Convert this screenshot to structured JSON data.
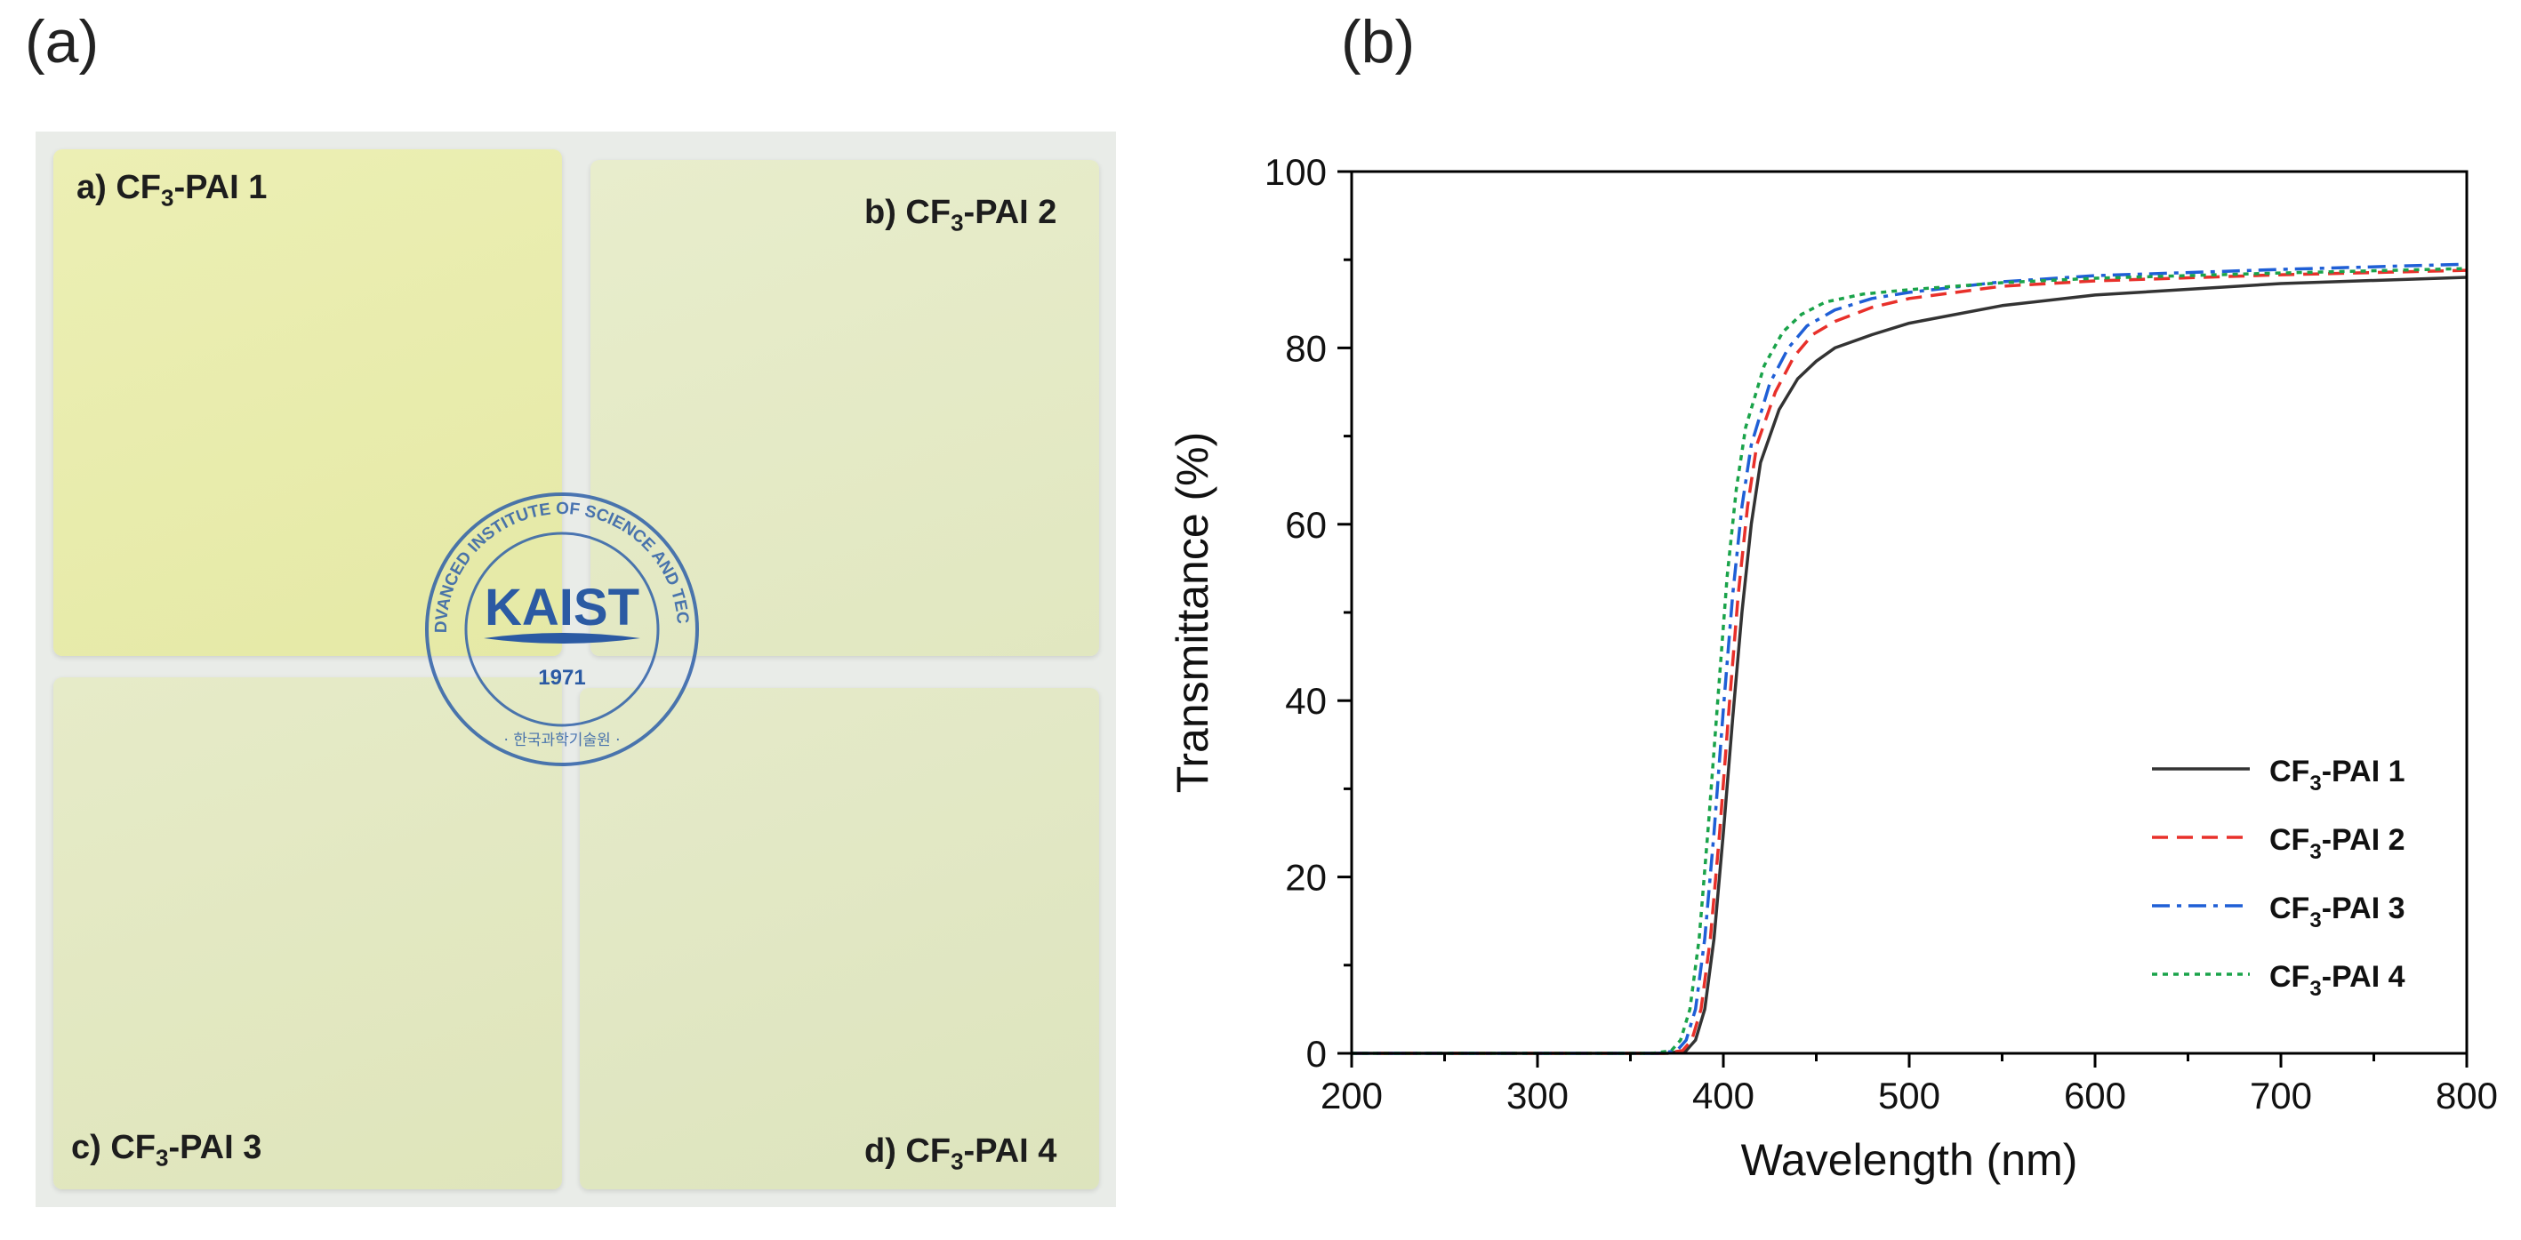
{
  "panels": {
    "a": "(a)",
    "b": "(b)"
  },
  "photo": {
    "films": [
      {
        "prefix": "a) CF",
        "sub": "3",
        "suffix": "-PAI 1"
      },
      {
        "prefix": "b) CF",
        "sub": "3",
        "suffix": "-PAI 2"
      },
      {
        "prefix": "c) CF",
        "sub": "3",
        "suffix": "-PAI 3"
      },
      {
        "prefix": "d) CF",
        "sub": "3",
        "suffix": "-PAI 4"
      }
    ],
    "seal": {
      "name": "KAIST",
      "year": "1971",
      "ring_text": "KOREA ADVANCED INSTITUTE OF SCIENCE AND TECHNOLOGY",
      "korean": "· 한국과학기술원 ·"
    }
  },
  "chart_data": {
    "type": "line",
    "xlabel": "Wavelength (nm)",
    "ylabel": "Transmittance (%)",
    "xlim": [
      200,
      800
    ],
    "ylim": [
      0,
      100
    ],
    "xticks": [
      200,
      300,
      400,
      500,
      600,
      700,
      800
    ],
    "yticks": [
      0,
      20,
      40,
      60,
      80,
      100
    ],
    "legend_position": "bottom-right",
    "series": [
      {
        "name_prefix": "CF",
        "name_sub": "3",
        "name_suffix": "-PAI 1",
        "color": "#333333",
        "dash": "solid",
        "x": [
          200,
          370,
          380,
          385,
          390,
          395,
          400,
          405,
          410,
          415,
          420,
          430,
          440,
          450,
          460,
          480,
          500,
          550,
          600,
          700,
          800
        ],
        "y": [
          0,
          0,
          0.3,
          1.5,
          5,
          13,
          25,
          38,
          50,
          60,
          67,
          73,
          76.5,
          78.5,
          80,
          81.5,
          82.8,
          84.8,
          86,
          87.3,
          88
        ]
      },
      {
        "name_prefix": "CF",
        "name_sub": "3",
        "name_suffix": "-PAI 2",
        "color": "#e8302a",
        "dash": "dashed",
        "x": [
          200,
          368,
          378,
          383,
          388,
          393,
          398,
          403,
          408,
          413,
          418,
          428,
          438,
          448,
          460,
          480,
          500,
          550,
          600,
          700,
          800
        ],
        "y": [
          0,
          0,
          0.3,
          1.5,
          5,
          13,
          25,
          39,
          52,
          62,
          69,
          75,
          79,
          81.5,
          83,
          84.6,
          85.6,
          87,
          87.6,
          88.3,
          88.8
        ]
      },
      {
        "name_prefix": "CF",
        "name_sub": "3",
        "name_suffix": "-PAI 3",
        "color": "#1f5fd6",
        "dash": "dashdot",
        "x": [
          200,
          365,
          375,
          380,
          385,
          390,
          395,
          400,
          405,
          410,
          415,
          425,
          435,
          445,
          460,
          480,
          500,
          550,
          600,
          700,
          800
        ],
        "y": [
          0,
          0,
          0.3,
          1.5,
          5,
          13,
          25,
          39,
          52,
          62,
          69,
          76,
          80,
          82.5,
          84.3,
          85.6,
          86.3,
          87.5,
          88.2,
          88.9,
          89.5
        ]
      },
      {
        "name_prefix": "CF",
        "name_sub": "3",
        "name_suffix": "-PAI 4",
        "color": "#1aa34a",
        "dash": "dotted",
        "x": [
          200,
          362,
          372,
          377,
          382,
          387,
          392,
          397,
          402,
          407,
          412,
          422,
          432,
          442,
          455,
          475,
          500,
          550,
          600,
          700,
          800
        ],
        "y": [
          0,
          0,
          0.3,
          1.5,
          5,
          13,
          26,
          40,
          54,
          64,
          71,
          78,
          81.8,
          83.8,
          85.2,
          86.1,
          86.6,
          87.4,
          87.9,
          88.5,
          89
        ]
      }
    ]
  }
}
